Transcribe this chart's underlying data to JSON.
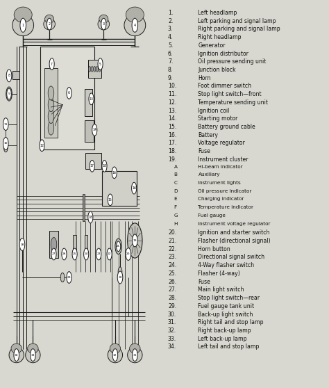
{
  "background_color": "#d8d8d0",
  "legend_color": "#ffffff",
  "line_color": "#1a1a1a",
  "text_color": "#111111",
  "legend_items": [
    [
      "1.",
      "Left headlamp"
    ],
    [
      "2.",
      "Left parking and signal lamp"
    ],
    [
      "3.",
      "Right parking and signal lamp"
    ],
    [
      "4.",
      "Right headlamp"
    ],
    [
      "5.",
      "Generator"
    ],
    [
      "6.",
      "Ignition distributor"
    ],
    [
      "7.",
      "Oil pressure sending unit"
    ],
    [
      "8.",
      "Junction block"
    ],
    [
      "9.",
      "Horn"
    ],
    [
      "10.",
      "Foot dimmer switch"
    ],
    [
      "11.",
      "Stop light switch—front"
    ],
    [
      "12.",
      "Temperature sending unit"
    ],
    [
      "13.",
      "Ignition coil"
    ],
    [
      "14.",
      "Starting motor"
    ],
    [
      "15.",
      "Battery ground cable"
    ],
    [
      "16.",
      "Battery"
    ],
    [
      "17.",
      "Voltage regulator"
    ],
    [
      "18.",
      "Fuse"
    ],
    [
      "19.",
      "Instrument cluster"
    ],
    [
      "    A",
      "Hi-beam indicator"
    ],
    [
      "    B",
      "Auxiliary"
    ],
    [
      "    C",
      "Instrument lights"
    ],
    [
      "    D",
      "Oil pressure indicator"
    ],
    [
      "    E",
      "Charging indicator"
    ],
    [
      "    F",
      "Temperature indicator"
    ],
    [
      "    G",
      "Fuel gauge"
    ],
    [
      "    H",
      "Instrument voltage regulator"
    ],
    [
      "20.",
      "Ignition and starter switch"
    ],
    [
      "21.",
      "Flasher (directional signal)"
    ],
    [
      "22.",
      "Horn button"
    ],
    [
      "23.",
      "Directional signal switch"
    ],
    [
      "24.",
      "4-Way flasher switch"
    ],
    [
      "25.",
      "Flasher (4-way)"
    ],
    [
      "26.",
      "Fuse"
    ],
    [
      "27.",
      "Main light switch"
    ],
    [
      "28.",
      "Stop light switch—rear"
    ],
    [
      "29.",
      "Fuel gauge tank unit"
    ],
    [
      "30.",
      "Back-up light switch"
    ],
    [
      "31.",
      "Right tail and stop lamp"
    ],
    [
      "32.",
      "Right back-up lamp"
    ],
    [
      "33.",
      "Left back-up lamp"
    ],
    [
      "34.",
      "Left tail and stop lamp"
    ]
  ],
  "fig_w": 4.74,
  "fig_h": 5.58,
  "dpi": 100
}
